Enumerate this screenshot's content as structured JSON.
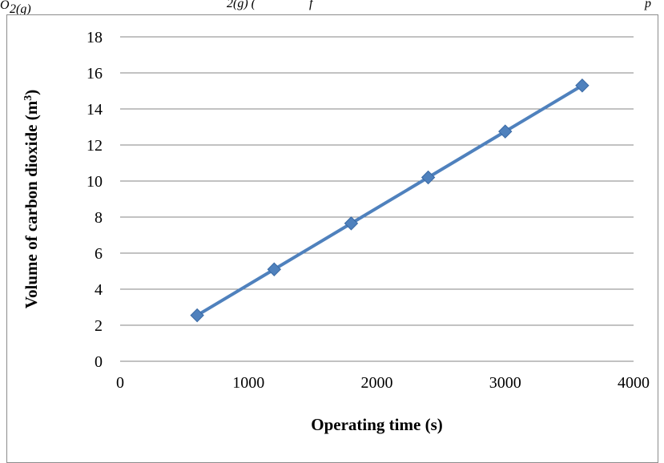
{
  "clipped_caption": {
    "left": "O",
    "left_sub": "2(g)",
    "mid": "2(g) (",
    "right": "f",
    "far_right": "p"
  },
  "chart_data": {
    "type": "line",
    "title": "",
    "xlabel": "Operating time (s)",
    "ylabel": "Volume of carbon dioxide (m",
    "ylabel_superscript": "3",
    "ylabel_close": ")",
    "xlim": [
      0,
      4000
    ],
    "ylim": [
      0,
      18
    ],
    "xticks": [
      0,
      1000,
      2000,
      3000,
      4000
    ],
    "yticks": [
      0,
      2,
      4,
      6,
      8,
      10,
      12,
      14,
      16,
      18
    ],
    "grid": "horizontal",
    "legend": "none",
    "series": [
      {
        "x": [
          600,
          1200,
          1800,
          2400,
          3000,
          3600
        ],
        "y": [
          2.55,
          5.1,
          7.65,
          10.2,
          12.75,
          15.3
        ],
        "color": "#4f81bd",
        "marker": "diamond"
      }
    ]
  }
}
